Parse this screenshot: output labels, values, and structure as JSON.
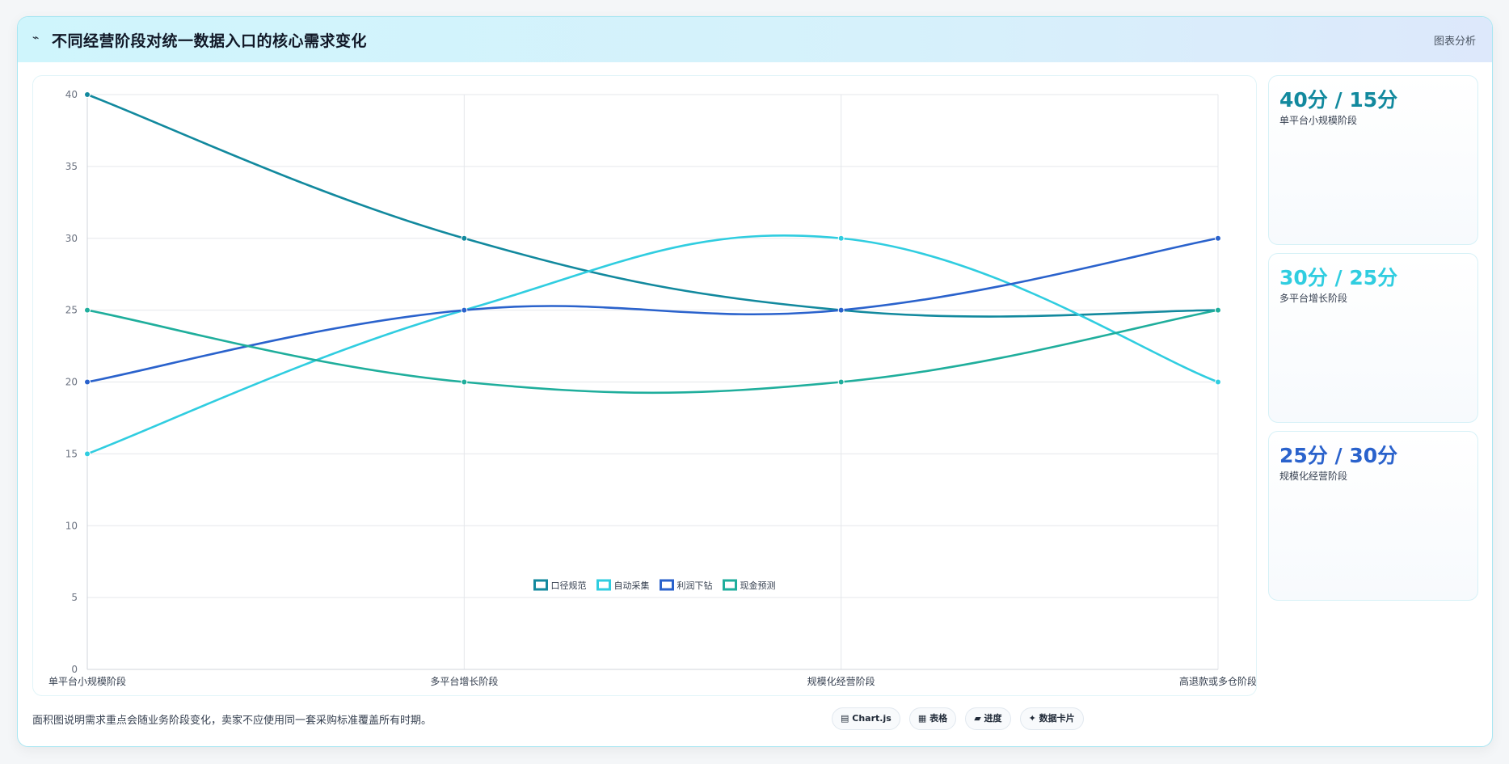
{
  "header": {
    "icon": "⌁",
    "title": "不同经营阶段对统一数据入口的核心需求变化",
    "tag": "图表分析"
  },
  "chart_data": {
    "type": "line",
    "categories": [
      "单平台小规模阶段",
      "多平台增长阶段",
      "规模化经营阶段",
      "高退款或多仓阶段"
    ],
    "series": [
      {
        "name": "口径规范",
        "values": [
          40,
          30,
          25,
          25
        ],
        "color": "#12899e"
      },
      {
        "name": "自动采集",
        "values": [
          15,
          25,
          30,
          20
        ],
        "color": "#30cde0"
      },
      {
        "name": "利润下钻",
        "values": [
          20,
          25,
          25,
          30
        ],
        "color": "#2a62cc"
      },
      {
        "name": "现金预测",
        "values": [
          25,
          20,
          20,
          25
        ],
        "color": "#1fae9c"
      }
    ],
    "ylim": [
      0,
      40
    ],
    "yticks": [
      0,
      5,
      10,
      15,
      20,
      25,
      30,
      35,
      40
    ],
    "grid": true,
    "legend": "bottom"
  },
  "cards": [
    {
      "value": "40分 / 15分",
      "label": "单平台小规模阶段",
      "color": "#12899e"
    },
    {
      "value": "30分 / 25分",
      "label": "多平台增长阶段",
      "color": "#30cde0"
    },
    {
      "value": "25分 / 30分",
      "label": "规模化经营阶段",
      "color": "#2a62cc"
    }
  ],
  "footer": {
    "note": "面积图说明需求重点会随业务阶段变化，卖家不应使用同一套采购标准覆盖所有时期。",
    "buttons": [
      {
        "icon": "▤",
        "label": "Chart.js"
      },
      {
        "icon": "▦",
        "label": "表格"
      },
      {
        "icon": "▰",
        "label": "进度"
      },
      {
        "icon": "✦",
        "label": "数据卡片"
      }
    ]
  }
}
